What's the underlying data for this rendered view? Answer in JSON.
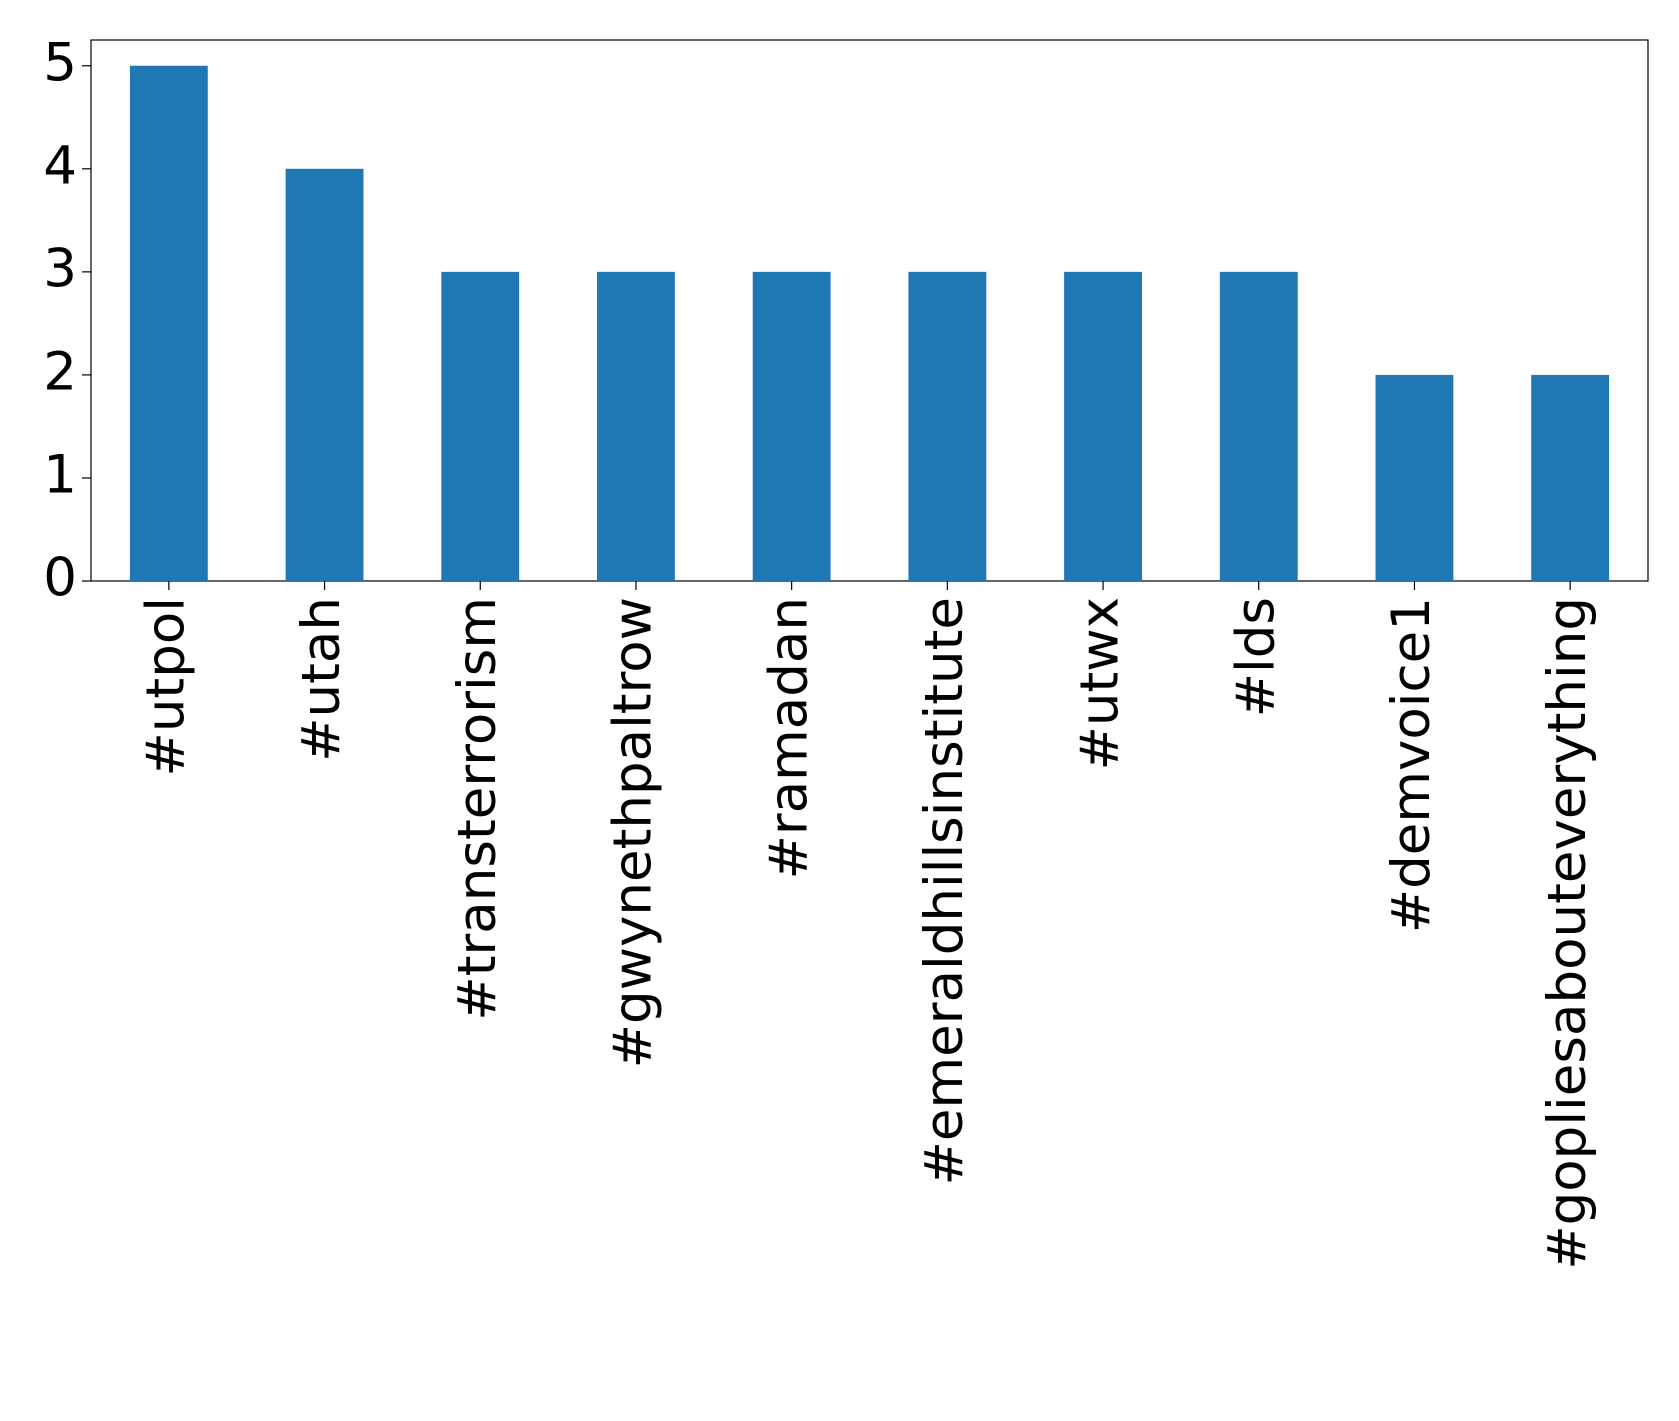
{
  "chart_data": {
    "type": "bar",
    "categories": [
      "#utpol",
      "#utah",
      "#transterrorism",
      "#gwynethpaltrow",
      "#ramadan",
      "#emeraldhillsinstitute",
      "#utwx",
      "#lds",
      "#demvoice1",
      "#gopliesabouteverything"
    ],
    "values": [
      5,
      4,
      3,
      3,
      3,
      3,
      3,
      3,
      2,
      2
    ],
    "color": "#1f77b4",
    "ylim": [
      0,
      5.25
    ],
    "yticks": [
      0,
      1,
      2,
      3,
      4,
      5
    ],
    "grid": false
  }
}
